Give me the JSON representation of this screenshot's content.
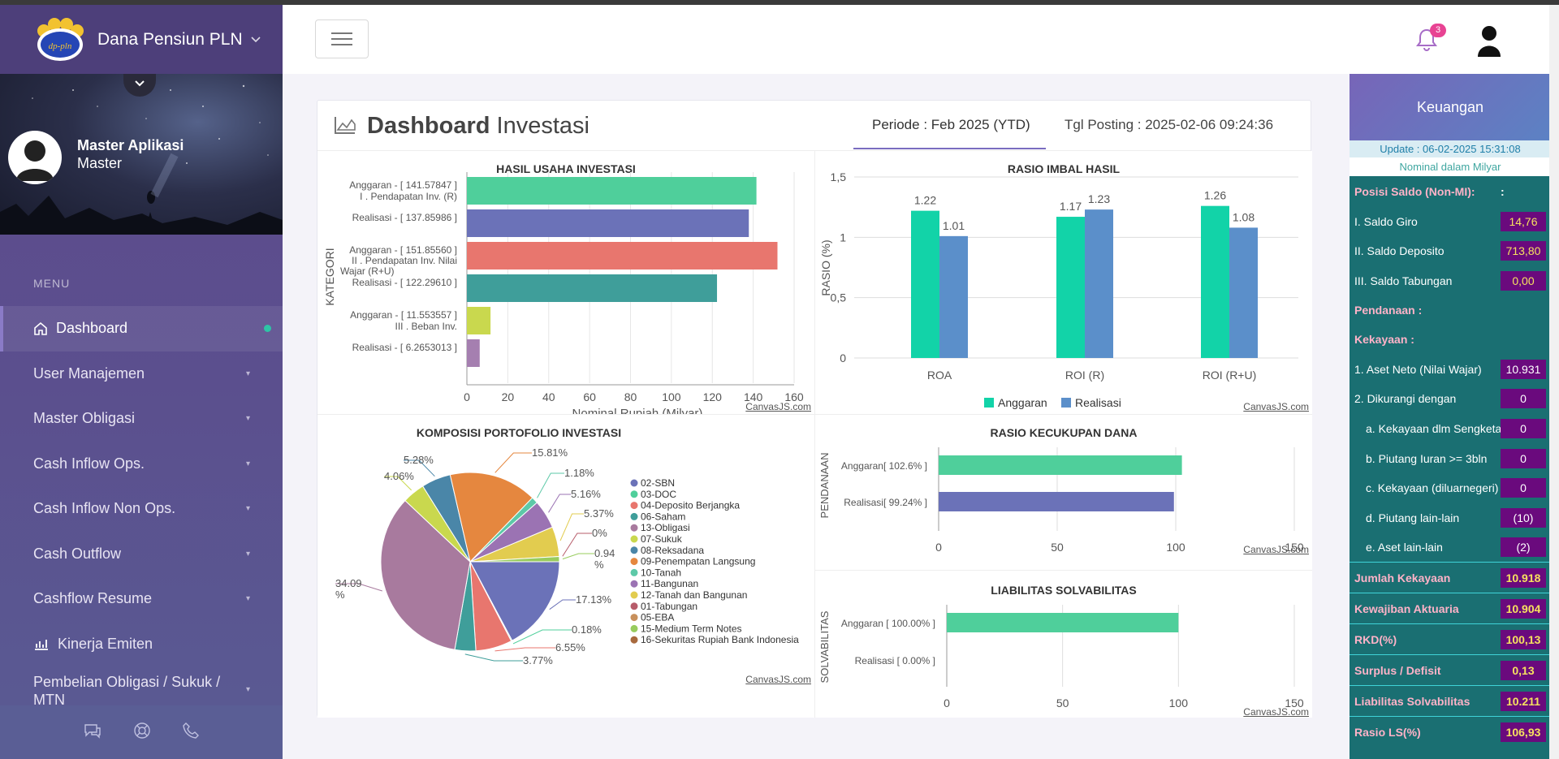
{
  "app": {
    "title": "Dana Pensiun PLN",
    "logo_text": "dp-pln"
  },
  "profile": {
    "name": "Master Aplikasi",
    "role": "Master"
  },
  "menu": {
    "label": "MENU",
    "items": [
      {
        "label": "Dashboard",
        "active": true
      },
      {
        "label": "User Manajemen"
      },
      {
        "label": "Master Obligasi"
      },
      {
        "label": "Cash Inflow Ops."
      },
      {
        "label": "Cash Inflow Non Ops."
      },
      {
        "label": "Cash Outflow"
      },
      {
        "label": "Cashflow Resume"
      },
      {
        "label": "Kinerja Emiten"
      },
      {
        "label": "Pembelian Obligasi / Sukuk / MTN"
      }
    ]
  },
  "header": {
    "notifications": "3"
  },
  "dashboard": {
    "title_bold": "Dashboard",
    "title_light": "Investasi",
    "periode": "Periode : Feb 2025 (YTD)",
    "tgl_posting": "Tgl Posting : 2025-02-06 09:24:36",
    "credit": "CanvasJS.com"
  },
  "chart_data": [
    {
      "id": "hasil_usaha",
      "type": "bar",
      "orientation": "horizontal",
      "title": "HASIL USAHA INVESTASI",
      "xlabel": "Nominal Rupiah (Milyar)",
      "ylabel": "KATEGORI",
      "xlim": [
        0,
        160
      ],
      "xticks": [
        "0",
        "20",
        "40",
        "60",
        "80",
        "100",
        "120",
        "140",
        "160"
      ],
      "categories": [
        {
          "label": "Anggaran - [ 141.57847 ]",
          "group": "I . Pendapatan Inv. (R)",
          "value": 141.57847,
          "color": "#4fcf9b"
        },
        {
          "label": "Realisasi - [  137.85986 ]",
          "value": 137.85986,
          "color": "#6b72b8"
        },
        {
          "label": "Anggaran - [ 151.85560 ]",
          "group": "II . Pendapatan Inv. Nilai Wajar (R+U)",
          "value": 151.8556,
          "color": "#e8766e"
        },
        {
          "label": "Realisasi - [ 122.29610 ]",
          "value": 122.2961,
          "color": "#3f9e9a"
        },
        {
          "label": "Anggaran - [ 11.553557 ]",
          "group": "III . Beban Inv.",
          "value": 11.553557,
          "color": "#c9d84e"
        },
        {
          "label": "Realisasi - [ 6.2653013 ]",
          "value": 6.2653013,
          "color": "#a57fb0"
        }
      ]
    },
    {
      "id": "rasio_imbal",
      "type": "bar",
      "title": "RASIO IMBAL HASIL",
      "ylabel": "RASIO (%)",
      "ylim": [
        0,
        1.5
      ],
      "yticks": [
        "0",
        "0,5",
        "1",
        "1,5"
      ],
      "categories": [
        "ROA",
        "ROI (R)",
        "ROI (R+U)"
      ],
      "series": [
        {
          "name": "Anggaran",
          "values": [
            1.22,
            1.17,
            1.26
          ],
          "color": "#12d3a8"
        },
        {
          "name": "Realisasi",
          "values": [
            1.01,
            1.23,
            1.08
          ],
          "color": "#5b8fca"
        }
      ]
    },
    {
      "id": "komposisi",
      "type": "pie",
      "title": "KOMPOSISI PORTOFOLIO INVESTASI",
      "legend": [
        {
          "name": "02-SBN",
          "color": "#6b72b8"
        },
        {
          "name": "03-DOC",
          "color": "#4fcf9b"
        },
        {
          "name": "04-Deposito Berjangka",
          "color": "#e8766e"
        },
        {
          "name": "06-Saham",
          "color": "#3f9e9a"
        },
        {
          "name": "13-Obligasi",
          "color": "#a87a9e"
        },
        {
          "name": "07-Sukuk",
          "color": "#c9d84e"
        },
        {
          "name": "08-Reksadana",
          "color": "#4a86a8"
        },
        {
          "name": "09-Penempatan Langsung",
          "color": "#e5873f"
        },
        {
          "name": "10-Tanah",
          "color": "#5dc9a8"
        },
        {
          "name": "11-Bangunan",
          "color": "#9b73b3"
        },
        {
          "name": "12-Tanah dan Bangunan",
          "color": "#e2cc4f"
        },
        {
          "name": "01-Tabungan",
          "color": "#b75c6a"
        },
        {
          "name": "05-EBA",
          "color": "#c8905c"
        },
        {
          "name": "15-Medium Term Notes",
          "color": "#98cc5e"
        },
        {
          "name": "16-Sekuritas Rupiah Bank Indonesia",
          "color": "#a86a3e"
        }
      ],
      "slices": [
        {
          "label": "17.13%",
          "value": 17.13,
          "color": "#6b72b8"
        },
        {
          "label": "0.18%",
          "value": 0.18,
          "color": "#4fcf9b"
        },
        {
          "label": "6.55%",
          "value": 6.55,
          "color": "#e8766e"
        },
        {
          "label": "3.77%",
          "value": 3.77,
          "color": "#3f9e9a"
        },
        {
          "label": "34.09 %",
          "value": 34.09,
          "color": "#a87a9e"
        },
        {
          "label": "4.06%",
          "value": 4.06,
          "color": "#c9d84e"
        },
        {
          "label": "5.28%",
          "value": 5.28,
          "color": "#4a86a8"
        },
        {
          "label": "15.81%",
          "value": 15.81,
          "color": "#e5873f"
        },
        {
          "label": "1.18%",
          "value": 1.18,
          "color": "#5dc9a8"
        },
        {
          "label": "5.16%",
          "value": 5.16,
          "color": "#9b73b3"
        },
        {
          "label": "5.37%",
          "value": 5.37,
          "color": "#e2cc4f"
        },
        {
          "label": "0%",
          "value": 0,
          "color": "#b75c6a"
        },
        {
          "label": "0.94 %",
          "value": 0.94,
          "color": "#98cc5e"
        }
      ]
    },
    {
      "id": "rkd",
      "type": "bar",
      "orientation": "horizontal",
      "title": "RASIO KECUKUPAN DANA",
      "ylabel": "PENDANAAN",
      "xlim": [
        0,
        150
      ],
      "xticks": [
        "0",
        "50",
        "100",
        "150"
      ],
      "categories": [
        {
          "label": "Anggaran[ 102.6% ]",
          "value": 102.6,
          "color": "#4fcf9b"
        },
        {
          "label": "Realisasi[ 99.24% ]",
          "value": 99.24,
          "color": "#6b72b8"
        }
      ]
    },
    {
      "id": "solvabilitas",
      "type": "bar",
      "orientation": "horizontal",
      "title": "LIABILITAS SOLVABILITAS",
      "ylabel": "SOLVABILITAS",
      "xlim": [
        0,
        150
      ],
      "xticks": [
        "0",
        "50",
        "100",
        "150"
      ],
      "categories": [
        {
          "label": "Anggaran [ 100.00% ]",
          "value": 100,
          "color": "#4fcf9b"
        },
        {
          "label": "Realisasi [ 0.00% ]",
          "value": 0,
          "color": "#6b72b8"
        }
      ]
    }
  ],
  "keuangan": {
    "title": "Keuangan",
    "update": "Update : 06-02-2025 15:31:08",
    "nominal": "Nominal dalam Milyar",
    "rows": [
      {
        "label": "Posisi Saldo (Non-MI):",
        "colon": ":",
        "type": "h"
      },
      {
        "label": "I. Saldo Giro",
        "value": "14,76"
      },
      {
        "label": "II. Saldo Deposito",
        "value": "713,80"
      },
      {
        "label": "III. Saldo Tabungan",
        "value": "0,00"
      },
      {
        "label": "Pendanaan :",
        "type": "h"
      },
      {
        "label": "Kekayaan :",
        "type": "h"
      },
      {
        "label": "1. Aset Neto (Nilai Wajar)",
        "value": "10.931",
        "white": true
      },
      {
        "label": "2. Dikurangi dengan",
        "value": "0",
        "white": true
      },
      {
        "label": "a. Kekayaan dlm Sengketa",
        "value": "0",
        "white": true,
        "indent": true
      },
      {
        "label": "b. Piutang Iuran >= 3bln",
        "value": "0",
        "white": true,
        "indent": true
      },
      {
        "label": "c. Kekayaan (diluarnegeri)",
        "value": "0",
        "white": true,
        "indent": true
      },
      {
        "label": "d. Piutang lain-lain",
        "value": "(10)",
        "white": true,
        "indent": true
      },
      {
        "label": "e. Aset lain-lain",
        "value": "(2)",
        "white": true,
        "indent": true
      },
      {
        "label": "Jumlah Kekayaan",
        "value": "10.918",
        "type": "h",
        "sep": true
      },
      {
        "label": "Kewajiban Aktuaria",
        "value": "10.904",
        "type": "h",
        "sep": true
      },
      {
        "label": "RKD(%)",
        "value": "100,13",
        "type": "h",
        "sep": true
      },
      {
        "label": "Surplus / Defisit",
        "value": "0,13",
        "type": "h",
        "sep": true
      },
      {
        "label": "Liabilitas Solvabilitas",
        "value": "10.211",
        "type": "h",
        "sep": true
      },
      {
        "label": "Rasio LS(%)",
        "value": "106,93",
        "type": "h",
        "sep": true
      }
    ]
  }
}
